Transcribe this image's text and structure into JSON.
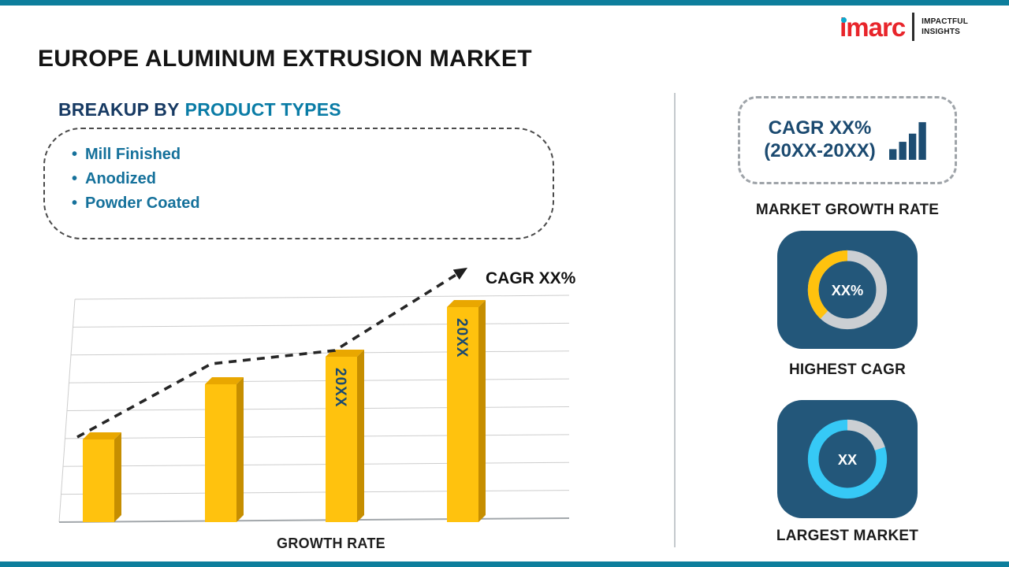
{
  "brand": {
    "logo_text": "imarc",
    "tagline_line1": "IMPACTFUL",
    "tagline_line2": "INSIGHTS"
  },
  "header": {
    "title": "EUROPE ALUMINUM EXTRUSION MARKET"
  },
  "breakup": {
    "heading_prefix": "BREAKUP BY",
    "heading_highlight": "PRODUCT TYPES",
    "items": [
      "Mill Finished",
      "Anodized",
      "Powder Coated"
    ]
  },
  "chart_data": {
    "type": "bar",
    "categories": [
      "",
      "",
      "20XX",
      "20XX"
    ],
    "values": [
      30,
      50,
      60,
      78
    ],
    "ylim": [
      0,
      100
    ],
    "grid": true,
    "xlabel": "GROWTH RATE",
    "trend_label": "CAGR XX%",
    "bar_color": "#FFC20E"
  },
  "right_panel": {
    "cagr_box": {
      "line1": "CAGR XX%",
      "line2": "(20XX-20XX)"
    },
    "growth_rate_label": "MARKET GROWTH RATE",
    "donuts": [
      {
        "value": "XX%",
        "label": "HIGHEST CAGR",
        "percent": 38,
        "arc_color": "#FFC20E",
        "ring_color": "#CBCFD3"
      },
      {
        "value": "XX",
        "label": "LARGEST MARKET",
        "percent": 20,
        "arc_color": "#CBCFD3",
        "ring_color": "#36C9F6"
      }
    ]
  },
  "colors": {
    "accent_teal": "#0D7E9C",
    "brand_red": "#E8252B",
    "navy": "#1B4A70",
    "gold": "#FFC20E",
    "cyan": "#36C9F6",
    "card_bg": "#23577A"
  }
}
